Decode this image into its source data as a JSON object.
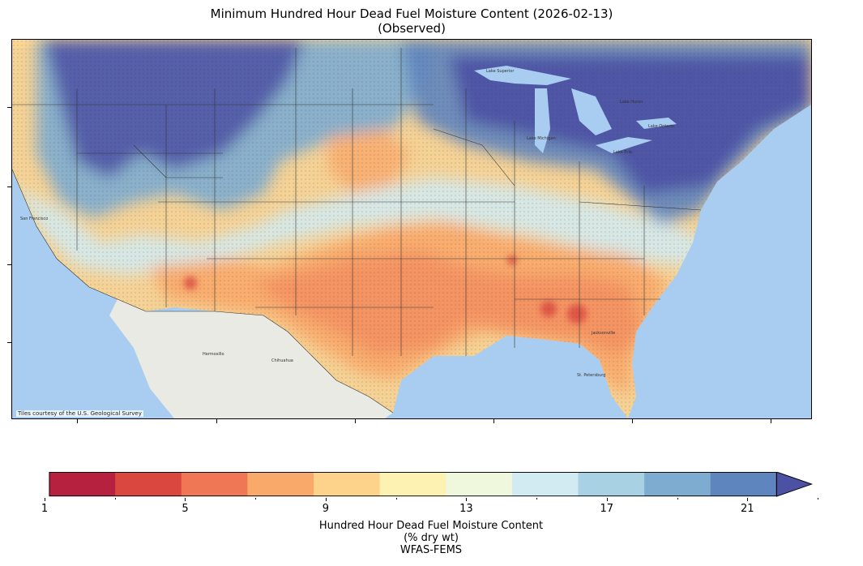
{
  "title": "Minimum Hundred Hour Dead Fuel Moisture Content (2026-02-13)",
  "subtitle": "(Observed)",
  "attribution": "Tiles courtesy of the U.S. Geological Survey",
  "colorbar": {
    "label_line1": "Hundred Hour Dead Fuel Moisture Content",
    "label_line2": "(% dry wt)",
    "label_line3": "WFAS-FEMS",
    "ticks": [
      "1",
      "5",
      "9",
      "13",
      "17",
      "21"
    ],
    "boundaries": [
      1,
      3,
      5,
      7,
      9,
      11,
      13,
      15,
      17,
      19,
      21,
      23
    ],
    "extend": "max",
    "colors": [
      "#b5213f",
      "#d9473e",
      "#ef7756",
      "#f9a96a",
      "#fdd38b",
      "#fef2b2",
      "#eff8dc",
      "#d2ebf2",
      "#a9d1e4",
      "#7eacd0",
      "#5f85be",
      "#4d51a4"
    ]
  },
  "map_colors": {
    "ocean": "#a9cdf0",
    "land": "#eef0e4",
    "mexico": "#e8eae3",
    "canada": "#e4eedd",
    "lakes": "#a9cdf0",
    "state_lines": "#333333"
  },
  "map_labels": {
    "city1": "San Francisco",
    "city2": "Chihuahua",
    "city3": "Hermosillo",
    "city4": "Jacksonville",
    "city5": "St. Petersburg",
    "region1": "Lake Superior",
    "region2": "Lake Michigan",
    "region3": "Lake Huron",
    "region4": "Lake Erie",
    "region5": "Lake Ontario"
  }
}
